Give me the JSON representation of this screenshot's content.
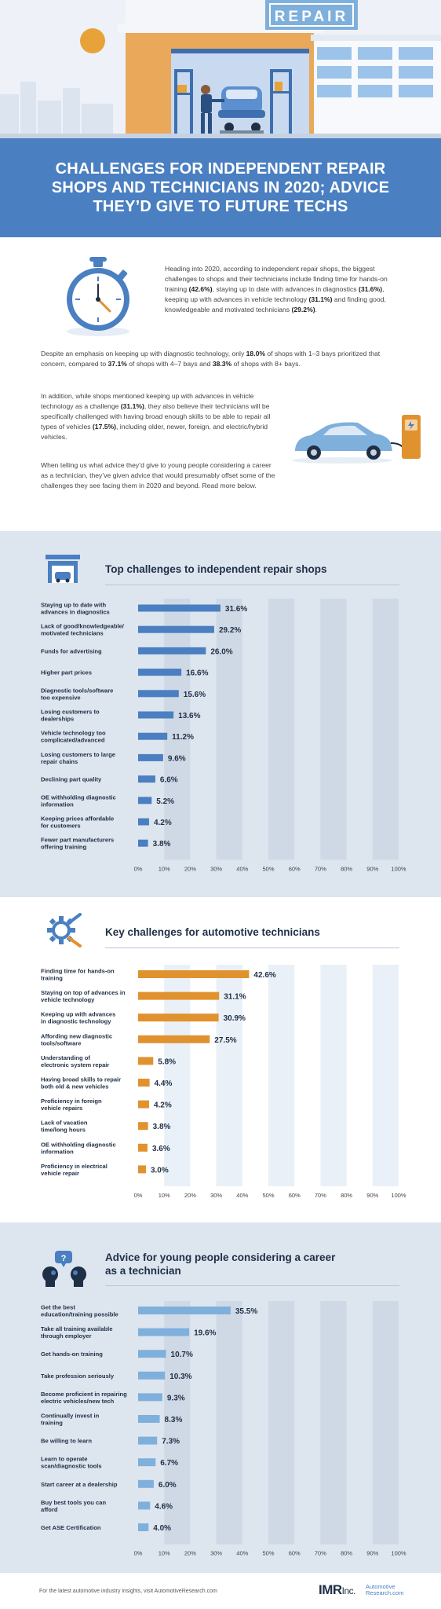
{
  "hero": {
    "sign": "REPAIR"
  },
  "title": "CHALLENGES FOR INDEPENDENT REPAIR SHOPS AND TECHNICIANS IN 2020; ADVICE THEY’D GIVE TO FUTURE TECHS",
  "intro": {
    "p1": [
      {
        "t": "Heading into 2020, according to independent repair shops, the biggest challenges to shops and their technicians include finding time for hands-on training "
      },
      {
        "t": "(42.6%)",
        "b": true
      },
      {
        "t": ", staying up to date with advances in diagnostics "
      },
      {
        "t": "(31.6%)",
        "b": true
      },
      {
        "t": ", keeping up with advances in vehicle technology "
      },
      {
        "t": "(31.1%)",
        "b": true
      },
      {
        "t": " and finding good, knowledgeable and motivated technicians "
      },
      {
        "t": "(29.2%)",
        "b": true
      },
      {
        "t": "."
      }
    ],
    "p2": [
      {
        "t": "Despite an emphasis on keeping up with diagnostic technology, only "
      },
      {
        "t": "18.0%",
        "b": true
      },
      {
        "t": " of shops with 1–3 bays prioritized that concern, compared to "
      },
      {
        "t": "37.1%",
        "b": true
      },
      {
        "t": " of shops with 4–7 bays and "
      },
      {
        "t": "38.3%",
        "b": true
      },
      {
        "t": " of shops with 8+ bays."
      }
    ],
    "p3": [
      {
        "t": "In addition, while shops mentioned keeping up with advances in vehicle technology as a challenge "
      },
      {
        "t": "(31.1%)",
        "b": true
      },
      {
        "t": ", they also believe their technicians will be specifically challenged with having broad enough skills to be able to repair all types of vehicles "
      },
      {
        "t": "(17.5%)",
        "b": true
      },
      {
        "t": ", including older, newer, foreign, and electric/hybrid vehicles."
      }
    ],
    "p4": [
      {
        "t": "When telling us what advice they’d give to young people considering a career as a technician, they’ve given advice that would presumably offset some of the challenges they see facing them in 2020 and beyond. Read more below."
      }
    ]
  },
  "footer": {
    "note": "For the latest automotive industry insights, visit AutomotiveResearch.com",
    "logo": "IMR",
    "logo_suffix": "Inc.",
    "logo2_line1": "Automotive",
    "logo2_line2": "Research.com"
  },
  "colors": {
    "blue": "#4a7fc1",
    "orange": "#e0922f",
    "lightblue": "#7fb0dc",
    "navy": "#1f2f45"
  },
  "chart_data": [
    {
      "type": "bar",
      "orientation": "horizontal",
      "title": "Top challenges to independent repair shops",
      "color": "#4a7fc1",
      "icon": "repair-shop-icon",
      "categories": [
        [
          "Staying up to date with",
          "advances in diagnostics"
        ],
        [
          "Lack of good/knowledgeable/",
          "motivated technicians"
        ],
        [
          "Funds for advertising"
        ],
        [
          "Higher part prices"
        ],
        [
          "Diagnostic tools/software",
          "too expensive"
        ],
        [
          "Losing customers to",
          "dealerships"
        ],
        [
          "Vehicle technology too",
          "complicated/advanced"
        ],
        [
          "Losing customers to large",
          "repair chains"
        ],
        [
          "Declining part quality"
        ],
        [
          "OE withholding diagnostic",
          "information"
        ],
        [
          "Keeping prices affordable",
          "for customers"
        ],
        [
          "Fewer part manufacturers",
          "offering training"
        ]
      ],
      "values": [
        31.6,
        29.2,
        26.0,
        16.6,
        15.6,
        13.6,
        11.2,
        9.6,
        6.6,
        5.2,
        4.2,
        3.8
      ],
      "labels": [
        "31.6%",
        "29.2%",
        "26.0%",
        "16.6%",
        "15.6%",
        "13.6%",
        "11.2%",
        "9.6%",
        "6.6%",
        "5.2%",
        "4.2%",
        "3.8%"
      ],
      "xlim": [
        0,
        100
      ],
      "ticks": [
        "0%",
        "10%",
        "20%",
        "30%",
        "40%",
        "50%",
        "60%",
        "70%",
        "80%",
        "90%",
        "100%"
      ]
    },
    {
      "type": "bar",
      "orientation": "horizontal",
      "title": "Key challenges for automotive technicians",
      "color": "#e0922f",
      "icon": "gear-wrench-icon",
      "categories": [
        [
          "Finding time for hands-on",
          "training"
        ],
        [
          "Staying on top of advances in",
          "vehicle technology"
        ],
        [
          "Keeping up with advances",
          "in diagnostic technology"
        ],
        [
          "Affording new diagnostic",
          "tools/software"
        ],
        [
          "Understanding of",
          "electronic system repair"
        ],
        [
          "Having broad skills to repair",
          "both old & new vehicles"
        ],
        [
          "Proficiency in foreign",
          "vehicle repairs"
        ],
        [
          "Lack of vacation",
          "time/long hours"
        ],
        [
          "OE withholding diagnostic",
          "information"
        ],
        [
          "Proficiency in electrical",
          "vehicle repair"
        ]
      ],
      "values": [
        42.6,
        31.1,
        30.9,
        27.5,
        5.8,
        4.4,
        4.2,
        3.8,
        3.6,
        3.0
      ],
      "labels": [
        "42.6%",
        "31.1%",
        "30.9%",
        "27.5%",
        "5.8%",
        "4.4%",
        "4.2%",
        "3.8%",
        "3.6%",
        "3.0%"
      ],
      "xlim": [
        0,
        100
      ],
      "ticks": [
        "0%",
        "10%",
        "20%",
        "30%",
        "40%",
        "50%",
        "60%",
        "70%",
        "80%",
        "90%",
        "100%"
      ]
    },
    {
      "type": "bar",
      "orientation": "horizontal",
      "title": [
        "Advice for young people considering a career",
        "as a technician"
      ],
      "color": "#7fb0dc",
      "icon": "advice-chat-icon",
      "categories": [
        [
          "Get the best",
          "education/training possible"
        ],
        [
          "Take all training available",
          "through employer"
        ],
        [
          "Get hands-on training"
        ],
        [
          "Take profession seriously"
        ],
        [
          "Become proficient in repairing",
          "electric vehicles/new tech"
        ],
        [
          "Continually invest in",
          "training"
        ],
        [
          "Be willing to learn"
        ],
        [
          "Learn to operate",
          "scan/diagnostic tools"
        ],
        [
          "Start career at a dealership"
        ],
        [
          "Buy best tools you can",
          "afford"
        ],
        [
          "Get ASE Certification"
        ]
      ],
      "values": [
        35.5,
        19.6,
        10.7,
        10.3,
        9.3,
        8.3,
        7.3,
        6.7,
        6.0,
        4.6,
        4.0
      ],
      "labels": [
        "35.5%",
        "19.6%",
        "10.7%",
        "10.3%",
        "9.3%",
        "8.3%",
        "7.3%",
        "6.7%",
        "6.0%",
        "4.6%",
        "4.0%"
      ],
      "xlim": [
        0,
        100
      ],
      "ticks": [
        "0%",
        "10%",
        "20%",
        "30%",
        "40%",
        "50%",
        "60%",
        "70%",
        "80%",
        "90%",
        "100%"
      ]
    }
  ]
}
